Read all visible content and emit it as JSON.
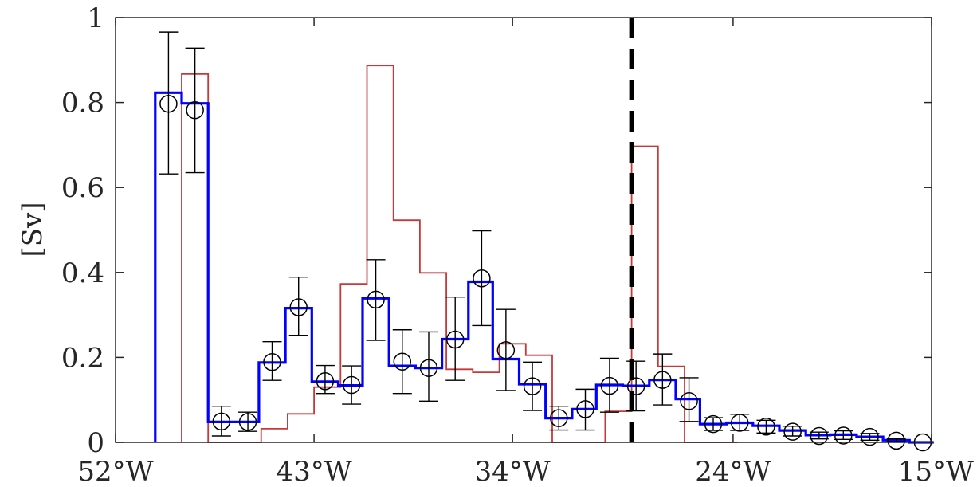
{
  "chart_data": {
    "type": "line",
    "title": "",
    "xlabel": "",
    "ylabel": "[Sv]",
    "xlim": [
      52,
      15
    ],
    "ylim": [
      0,
      1
    ],
    "x_ticks": [
      {
        "value": 52,
        "label": "52°W"
      },
      {
        "value": 43,
        "label": "43°W"
      },
      {
        "value": 34,
        "label": "34°W"
      },
      {
        "value": 24,
        "label": "24°W"
      },
      {
        "value": 15,
        "label": "15°W"
      }
    ],
    "y_ticks": [
      {
        "value": 0,
        "label": "0"
      },
      {
        "value": 0.2,
        "label": "0.2"
      },
      {
        "value": 0.4,
        "label": "0.4"
      },
      {
        "value": 0.6,
        "label": "0.6"
      },
      {
        "value": 0.8,
        "label": "0.8"
      },
      {
        "value": 1,
        "label": "1"
      }
    ],
    "series": [
      {
        "name": "blue-step",
        "color": "#0000ff",
        "style": "step",
        "edges": [
          50.2,
          49.0,
          47.8,
          46.6,
          45.5,
          44.3,
          43.1,
          41.9,
          40.8,
          39.6,
          38.4,
          37.2,
          36.0,
          34.9,
          33.7,
          32.5,
          31.3,
          30.2,
          29.0,
          27.8,
          26.6,
          25.5,
          24.3,
          23.1,
          21.9,
          20.7,
          19.6,
          18.4,
          17.2,
          16.0,
          14.9
        ],
        "values": [
          0.823,
          0.798,
          0.048,
          0.048,
          0.188,
          0.316,
          0.143,
          0.134,
          0.339,
          0.18,
          0.175,
          0.243,
          0.378,
          0.196,
          0.137,
          0.057,
          0.078,
          0.135,
          0.133,
          0.147,
          0.102,
          0.043,
          0.046,
          0.039,
          0.028,
          0.017,
          0.018,
          0.013,
          0.005,
          0.0
        ]
      },
      {
        "name": "red-step",
        "color": "#c43a3a",
        "style": "step",
        "edges": [
          49.0,
          47.8,
          46.6,
          45.4,
          44.2,
          43.0,
          41.8,
          40.6,
          39.4,
          38.2,
          37.0,
          35.8,
          34.6,
          33.4,
          32.2,
          31.0,
          29.8,
          28.6,
          27.4,
          26.2,
          25.0,
          23.8
        ],
        "values": [
          0.867,
          0.0,
          0.0,
          0.032,
          0.067,
          0.13,
          0.373,
          0.887,
          0.523,
          0.399,
          0.172,
          0.165,
          0.232,
          0.205,
          0.0,
          0.0,
          0.073,
          0.697,
          0.179,
          0.0,
          0.0
        ]
      }
    ],
    "observations": {
      "name": "observations",
      "marker": "circle",
      "x": [
        49.6,
        48.4,
        47.2,
        46.0,
        44.9,
        43.7,
        42.5,
        41.3,
        40.2,
        39.0,
        37.8,
        36.6,
        35.4,
        34.3,
        33.1,
        31.9,
        30.7,
        29.6,
        28.4,
        27.2,
        26.0,
        24.9,
        23.7,
        22.5,
        21.3,
        20.1,
        19.0,
        17.8,
        16.6,
        15.4
      ],
      "y": [
        0.797,
        0.782,
        0.049,
        0.048,
        0.189,
        0.318,
        0.144,
        0.135,
        0.336,
        0.19,
        0.175,
        0.242,
        0.386,
        0.217,
        0.132,
        0.057,
        0.078,
        0.133,
        0.132,
        0.147,
        0.097,
        0.043,
        0.046,
        0.037,
        0.025,
        0.015,
        0.016,
        0.013,
        0.004,
        0.0
      ],
      "err_low": [
        0.632,
        0.635,
        0.015,
        0.026,
        0.146,
        0.252,
        0.115,
        0.09,
        0.24,
        0.115,
        0.097,
        0.146,
        0.275,
        0.122,
        0.075,
        0.029,
        0.029,
        0.071,
        0.074,
        0.088,
        0.049,
        0.028,
        0.028,
        0.022,
        0.015,
        0.008,
        0.007,
        0.005,
        0.002,
        0.0
      ],
      "err_high": [
        0.966,
        0.928,
        0.085,
        0.071,
        0.237,
        0.389,
        0.181,
        0.18,
        0.43,
        0.265,
        0.26,
        0.342,
        0.498,
        0.313,
        0.189,
        0.085,
        0.125,
        0.198,
        0.191,
        0.208,
        0.152,
        0.058,
        0.066,
        0.052,
        0.038,
        0.024,
        0.027,
        0.021,
        0.008,
        0.0
      ]
    },
    "reference_line": {
      "x": 28.6,
      "style": "dashed",
      "color": "#000000"
    },
    "grid": false,
    "legend": "none"
  }
}
